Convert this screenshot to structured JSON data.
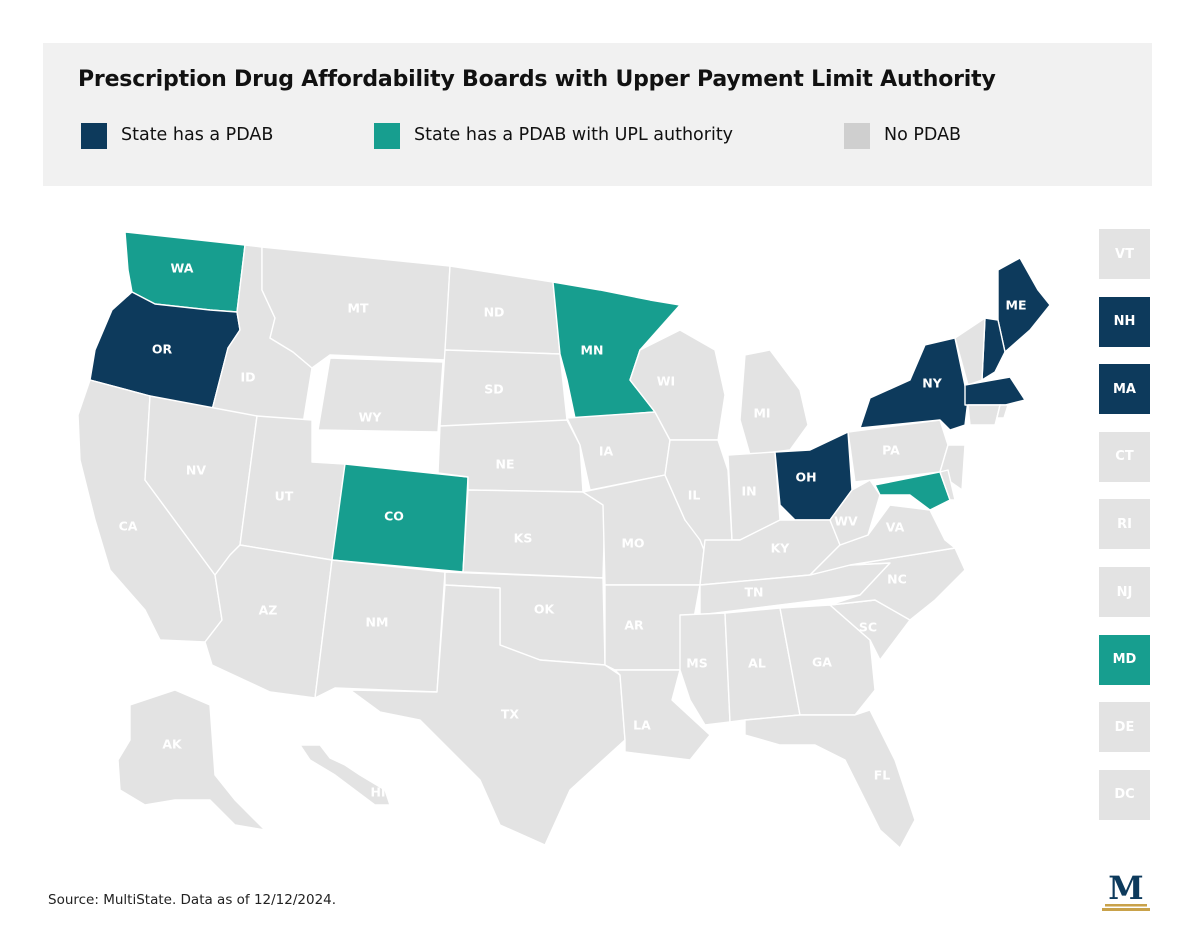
{
  "title": "Prescription Drug Affordability Boards with Upper Payment Limit Authority",
  "legend": [
    {
      "label": "State has a PDAB",
      "color": "#0d3a5c",
      "category": "pdab"
    },
    {
      "label": "State has a PDAB with UPL authority",
      "color": "#179e8f",
      "category": "upl"
    },
    {
      "label": "No PDAB",
      "color": "#cfcfcf",
      "category": "none"
    }
  ],
  "map_colors": {
    "pdab": "#0d3a5c",
    "upl": "#179e8f",
    "none": "#e3e3e3"
  },
  "label_colors": {
    "dark": "#ffffff",
    "light": "#ffffff"
  },
  "states": [
    {
      "abbr": "WA",
      "category": "upl"
    },
    {
      "abbr": "OR",
      "category": "pdab"
    },
    {
      "abbr": "CA",
      "category": "none"
    },
    {
      "abbr": "ID",
      "category": "none"
    },
    {
      "abbr": "NV",
      "category": "none"
    },
    {
      "abbr": "MT",
      "category": "none"
    },
    {
      "abbr": "WY",
      "category": "none"
    },
    {
      "abbr": "UT",
      "category": "none"
    },
    {
      "abbr": "AZ",
      "category": "none"
    },
    {
      "abbr": "CO",
      "category": "upl"
    },
    {
      "abbr": "NM",
      "category": "none"
    },
    {
      "abbr": "ND",
      "category": "none"
    },
    {
      "abbr": "SD",
      "category": "none"
    },
    {
      "abbr": "NE",
      "category": "none"
    },
    {
      "abbr": "KS",
      "category": "none"
    },
    {
      "abbr": "OK",
      "category": "none"
    },
    {
      "abbr": "TX",
      "category": "none"
    },
    {
      "abbr": "MN",
      "category": "upl"
    },
    {
      "abbr": "IA",
      "category": "none"
    },
    {
      "abbr": "MO",
      "category": "none"
    },
    {
      "abbr": "AR",
      "category": "none"
    },
    {
      "abbr": "LA",
      "category": "none"
    },
    {
      "abbr": "WI",
      "category": "none"
    },
    {
      "abbr": "IL",
      "category": "none"
    },
    {
      "abbr": "MI",
      "category": "none"
    },
    {
      "abbr": "IN",
      "category": "none"
    },
    {
      "abbr": "OH",
      "category": "pdab"
    },
    {
      "abbr": "KY",
      "category": "none"
    },
    {
      "abbr": "TN",
      "category": "none"
    },
    {
      "abbr": "MS",
      "category": "none"
    },
    {
      "abbr": "AL",
      "category": "none"
    },
    {
      "abbr": "GA",
      "category": "none"
    },
    {
      "abbr": "FL",
      "category": "none"
    },
    {
      "abbr": "SC",
      "category": "none"
    },
    {
      "abbr": "NC",
      "category": "none"
    },
    {
      "abbr": "VA",
      "category": "none"
    },
    {
      "abbr": "WV",
      "category": "none"
    },
    {
      "abbr": "PA",
      "category": "none"
    },
    {
      "abbr": "NY",
      "category": "pdab"
    },
    {
      "abbr": "ME",
      "category": "pdab"
    },
    {
      "abbr": "AK",
      "category": "none"
    },
    {
      "abbr": "HI",
      "category": "none"
    }
  ],
  "small_states": [
    {
      "abbr": "VT",
      "category": "none"
    },
    {
      "abbr": "NH",
      "category": "pdab"
    },
    {
      "abbr": "MA",
      "category": "pdab"
    },
    {
      "abbr": "CT",
      "category": "none"
    },
    {
      "abbr": "RI",
      "category": "none"
    },
    {
      "abbr": "NJ",
      "category": "none"
    },
    {
      "abbr": "MD",
      "category": "upl"
    },
    {
      "abbr": "DE",
      "category": "none"
    },
    {
      "abbr": "DC",
      "category": "none"
    }
  ],
  "small_box_colors": {
    "none": "#e3e3e3",
    "none_text": "#ffffff",
    "filled_text": "#ffffff"
  },
  "source": "Source: MultiState. Data as of 12/12/2024.",
  "logo_letter": "M"
}
